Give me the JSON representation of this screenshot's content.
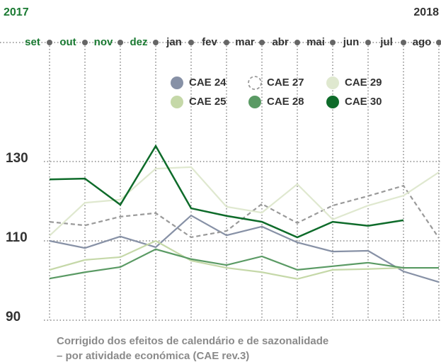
{
  "chart_data": {
    "type": "line",
    "years": [
      "2017",
      "2018"
    ],
    "categories": [
      "set",
      "out",
      "nov",
      "dez",
      "jan",
      "fev",
      "mar",
      "abr",
      "mai",
      "jun",
      "jul",
      "ago"
    ],
    "category_colors": [
      "#1a7a32",
      "#1a7a32",
      "#1a7a32",
      "#1a7a32",
      "#333333",
      "#333333",
      "#333333",
      "#333333",
      "#333333",
      "#333333",
      "#333333",
      "#333333"
    ],
    "series": [
      {
        "name": "CAE 24",
        "color": "#8791a6",
        "values": [
          110,
          108.2,
          111.1,
          108.4,
          116.4,
          111.4,
          113.6,
          109.6,
          107.3,
          107.5,
          102.3,
          99.6
        ]
      },
      {
        "name": "CAE 27",
        "color": "#9a9a9a",
        "dashed": true,
        "values": [
          114.8,
          113.9,
          116.1,
          117.0,
          110.9,
          112.5,
          119.3,
          114.5,
          118.9,
          121.3,
          123.9,
          110.7
        ]
      },
      {
        "name": "CAE 29",
        "color": "#dfe8cf",
        "values": [
          111.3,
          119.6,
          120.4,
          128.2,
          128.6,
          118.6,
          117.1,
          124.3,
          115.4,
          118.9,
          121.4,
          127.3
        ]
      },
      {
        "name": "CAE 25",
        "color": "#c5d8a8",
        "values": [
          102.7,
          105.2,
          105.9,
          110,
          105,
          103.2,
          102.1,
          100.4,
          102.7,
          102.9,
          103.2,
          103.2
        ]
      },
      {
        "name": "CAE 28",
        "color": "#5a9a64",
        "values": [
          100.5,
          102.1,
          103.4,
          107.9,
          105.4,
          103.9,
          106.1,
          102.7,
          103.6,
          104.5,
          103.2,
          103.2
        ]
      },
      {
        "name": "CAE 30",
        "color": "#0e6b2a",
        "values": [
          125.5,
          125.7,
          119.1,
          133.9,
          118.2,
          116.3,
          114.8,
          110.9,
          114.8,
          113.8,
          115.2,
          null
        ]
      }
    ],
    "ylim": [
      90,
      130
    ],
    "yticks": [
      90,
      110,
      130
    ],
    "grid": true,
    "notes": [
      "Corrigido dos efeitos de calendário e de sazonalidade",
      "– por atividade económica (CAE rev.3)"
    ]
  }
}
